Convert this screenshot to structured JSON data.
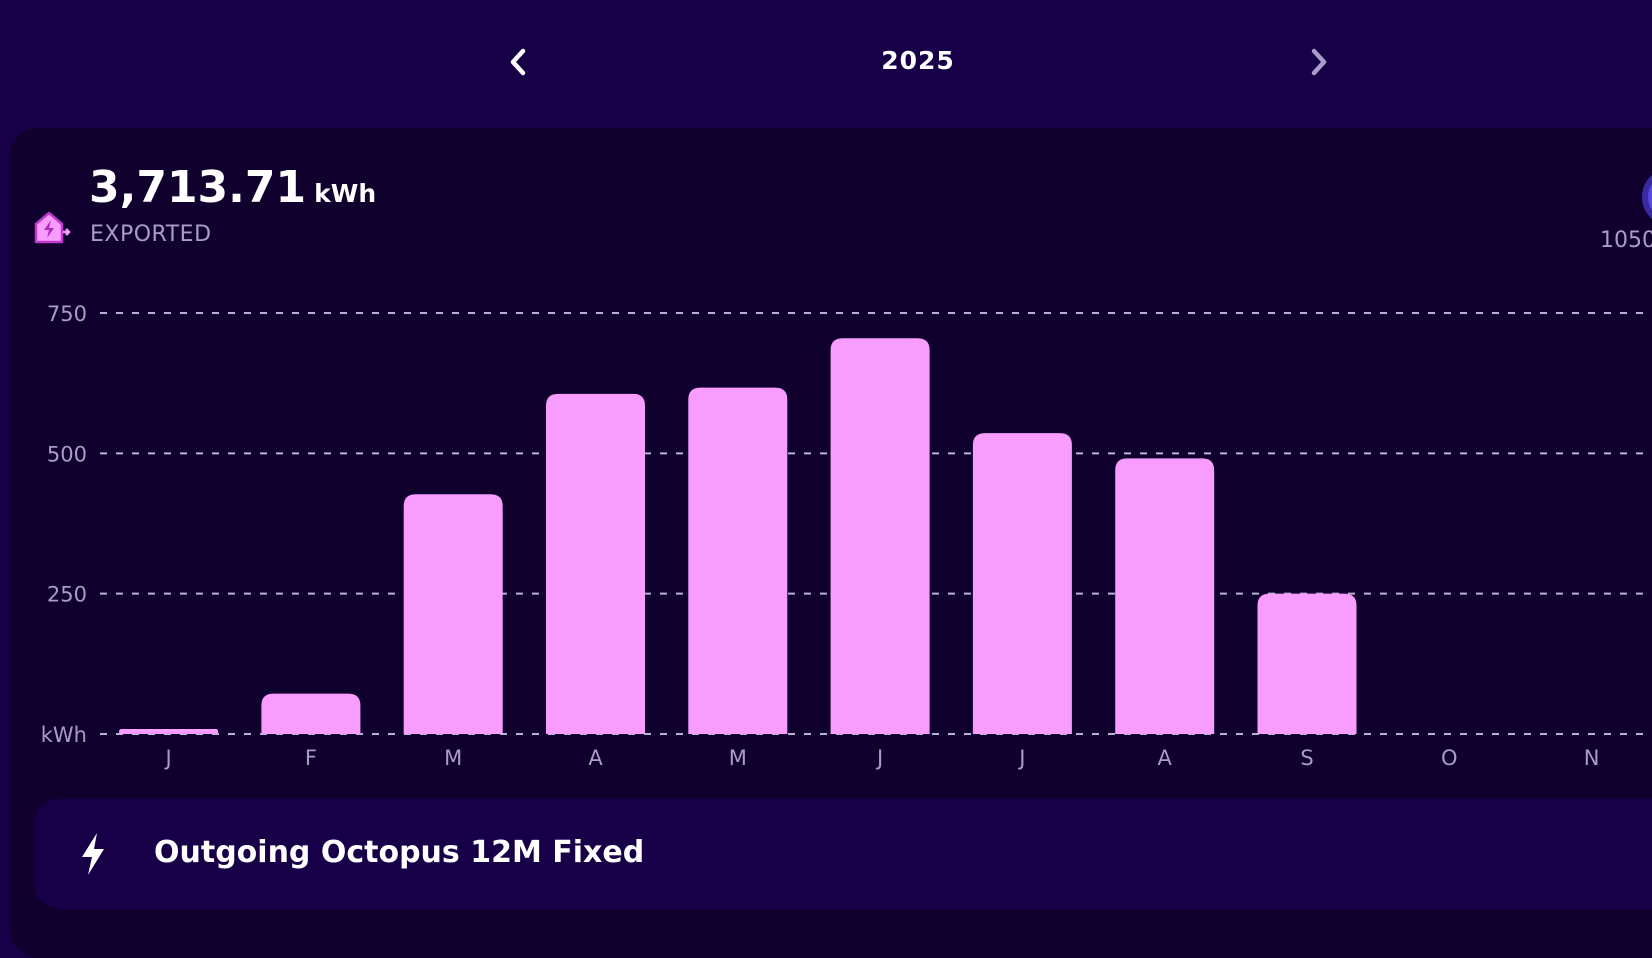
{
  "header": {
    "year": "2025",
    "prev_icon": "chevron-left-icon",
    "next_icon": "chevron-right-icon"
  },
  "summary": {
    "total": "3,713.71",
    "unit": "kWh",
    "label": "EXPORTED",
    "icon": "house-export-icon",
    "side_value": "1050"
  },
  "chart_data": {
    "type": "bar",
    "title": "",
    "xlabel": "",
    "ylabel": "kWh",
    "categories": [
      "J",
      "F",
      "M",
      "A",
      "M",
      "J",
      "J",
      "A",
      "S",
      "O",
      "N"
    ],
    "values": [
      9,
      72,
      427,
      606,
      617,
      705,
      536,
      491,
      250,
      null,
      null
    ],
    "yticks": [
      "kWh",
      "250",
      "500",
      "750"
    ],
    "ylim": [
      0,
      750
    ],
    "grid": true,
    "bar_color": "#f99cff"
  },
  "tariff": {
    "name": "Outgoing Octopus 12M Fixed",
    "icon": "lightning-bolt-icon"
  }
}
